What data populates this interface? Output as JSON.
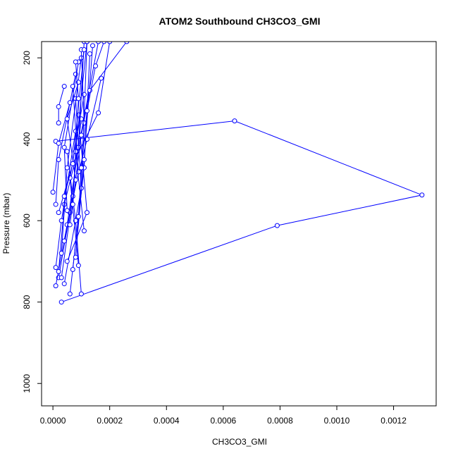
{
  "chart_data": {
    "type": "line",
    "title": "ATOM2 Southbound CH3CO3_GMI",
    "xlabel": "CH3CO3_GMI",
    "ylabel": "Pressure (mbar)",
    "xlim": [
      -4e-05,
      0.00135
    ],
    "ylim": [
      1055,
      160
    ],
    "y_reversed": true,
    "x_ticks": [
      0.0,
      0.0002,
      0.0004,
      0.0006,
      0.0008,
      0.001,
      0.0012
    ],
    "x_tick_labels": [
      "0.0000",
      "0.0002",
      "0.0004",
      "0.0006",
      "0.0008",
      "0.0010",
      "0.0012"
    ],
    "y_ticks": [
      200,
      400,
      600,
      800,
      1000
    ],
    "y_tick_labels": [
      "200",
      "400",
      "600",
      "800",
      "1000"
    ],
    "series_color": "#0000ff",
    "marker": "open-circle",
    "grid": false,
    "series": [
      {
        "x": [
          3e-05,
          0.00079,
          0.0013,
          0.00064,
          1e-05
        ],
        "y": [
          800,
          612,
          537,
          355,
          405
        ]
      },
      {
        "x": [
          4e-05,
          0.0001,
          0.00012
        ],
        "y": [
          755,
          520,
          160
        ]
      },
      {
        "x": [
          2e-05,
          6e-05,
          0.0001
        ],
        "y": [
          740,
          580,
          350
        ]
      },
      {
        "x": [
          1e-05,
          5e-05,
          9e-05,
          0.00016
        ],
        "y": [
          760,
          610,
          420,
          160
        ]
      },
      {
        "x": [
          6e-05,
          0.00011,
          0.00013
        ],
        "y": [
          780,
          470,
          190
        ]
      },
      {
        "x": [
          0.0001,
          8e-05,
          5e-05
        ],
        "y": [
          780,
          600,
          430
        ]
      },
      {
        "x": [
          2e-05,
          4e-05,
          9e-05,
          0.00011
        ],
        "y": [
          725,
          560,
          420,
          160
        ]
      },
      {
        "x": [
          3e-05,
          7e-05,
          0.00012,
          0.00017
        ],
        "y": [
          740,
          540,
          400,
          250
        ]
      },
      {
        "x": [
          1e-05,
          2e-05,
          8e-05
        ],
        "y": [
          560,
          450,
          240
        ]
      },
      {
        "x": [
          5e-05,
          0.00012,
          9e-05
        ],
        "y": [
          700,
          580,
          340
        ]
      },
      {
        "x": [
          7e-05,
          0.0001,
          8e-05
        ],
        "y": [
          720,
          520,
          300
        ]
      },
      {
        "x": [
          9e-05,
          6e-05,
          0.00011
        ],
        "y": [
          710,
          495,
          290
        ]
      },
      {
        "x": [
          3e-05,
          5e-05,
          0.0001
        ],
        "y": [
          680,
          470,
          200
        ]
      },
      {
        "x": [
          8e-05,
          0.00011,
          0.00014
        ],
        "y": [
          690,
          450,
          170
        ]
      },
      {
        "x": [
          0.0,
          2e-05,
          6e-05
        ],
        "y": [
          530,
          410,
          310
        ]
      },
      {
        "x": [
          4e-05,
          9e-05,
          7e-05
        ],
        "y": [
          650,
          480,
          270
        ]
      },
      {
        "x": [
          0.00011,
          8e-05,
          0.00012
        ],
        "y": [
          625,
          430,
          160
        ]
      },
      {
        "x": [
          5e-05,
          4e-05,
          9e-05
        ],
        "y": [
          575,
          420,
          210
        ]
      },
      {
        "x": [
          9e-05,
          0.00011,
          0.0001
        ],
        "y": [
          590,
          360,
          180
        ]
      },
      {
        "x": [
          2e-05,
          7e-05,
          0.00016,
          0.0002
        ],
        "y": [
          580,
          460,
          335,
          160
        ]
      },
      {
        "x": [
          6e-05,
          0.0001,
          0.00013,
          0.00026
        ],
        "y": [
          610,
          390,
          280,
          160
        ]
      },
      {
        "x": [
          1e-05,
          3e-05,
          8e-05
        ],
        "y": [
          715,
          600,
          380
        ]
      },
      {
        "x": [
          8e-05,
          5e-05,
          9e-05
        ],
        "y": [
          500,
          350,
          260
        ]
      },
      {
        "x": [
          2e-05,
          2e-05,
          4e-05
        ],
        "y": [
          360,
          320,
          270
        ]
      },
      {
        "x": [
          0.0001,
          0.00012,
          0.00015,
          0.00018
        ],
        "y": [
          470,
          330,
          220,
          160
        ]
      },
      {
        "x": [
          4e-05,
          7e-05,
          0.00011
        ],
        "y": [
          540,
          460,
          180
        ]
      },
      {
        "x": [
          7e-05,
          9e-05,
          8e-05
        ],
        "y": [
          560,
          300,
          210
        ]
      }
    ]
  }
}
